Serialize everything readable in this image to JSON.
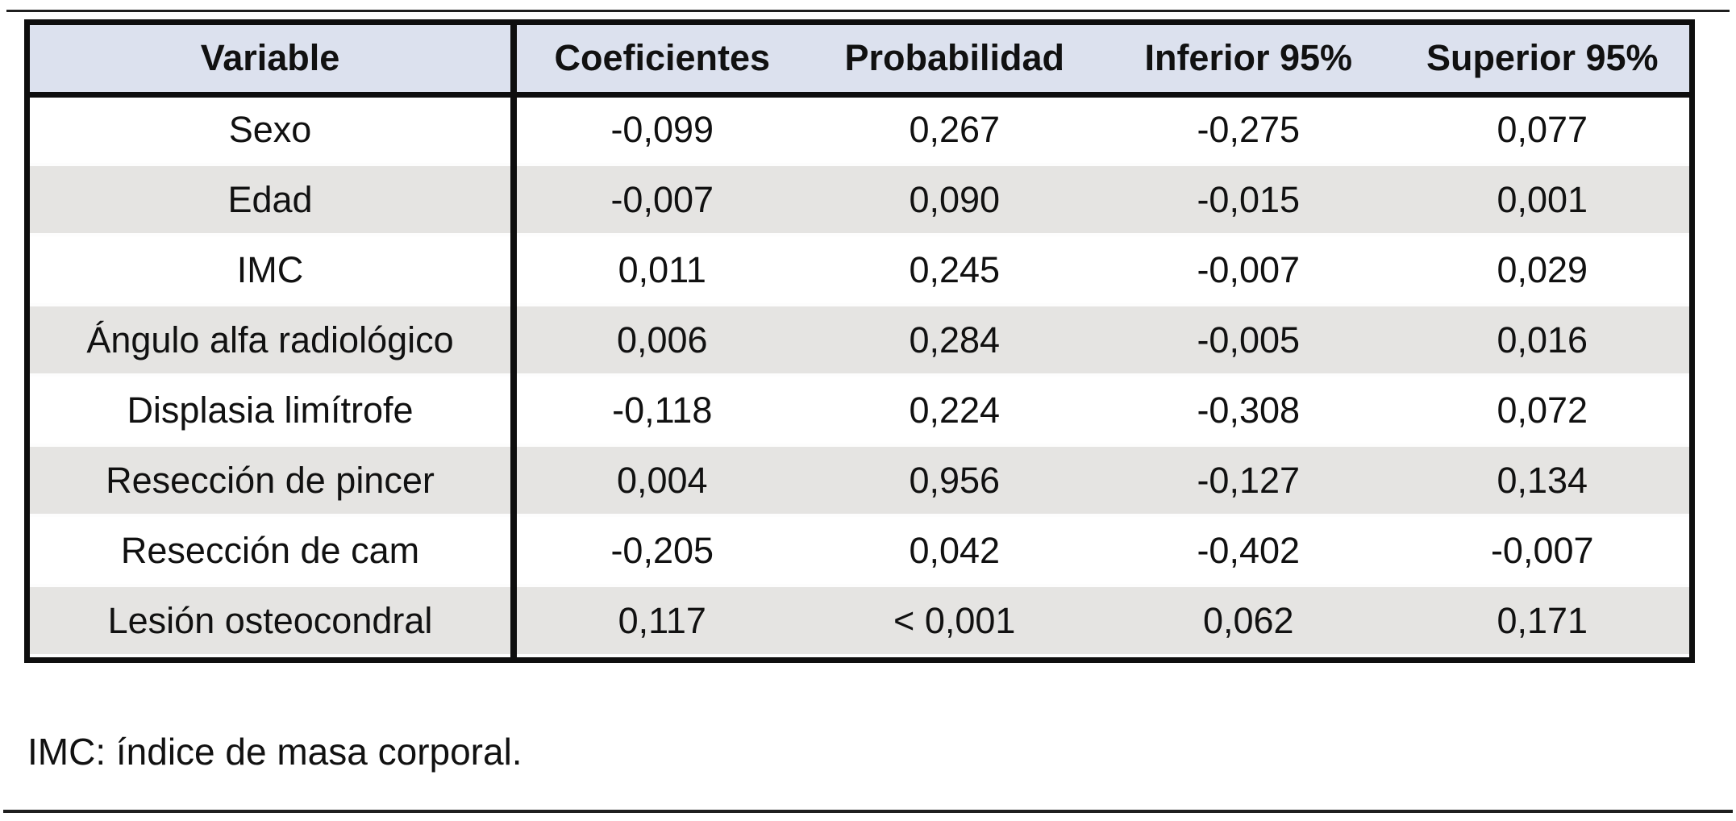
{
  "table": {
    "columns": [
      "Variable",
      "Coeficientes",
      "Probabilidad",
      "Inferior 95%",
      "Superior 95%"
    ],
    "rows": [
      [
        "Sexo",
        "-0,099",
        "0,267",
        "-0,275",
        "0,077"
      ],
      [
        "Edad",
        "-0,007",
        "0,090",
        "-0,015",
        "0,001"
      ],
      [
        "IMC",
        "0,011",
        "0,245",
        "-0,007",
        "0,029"
      ],
      [
        "Ángulo alfa radiológico",
        "0,006",
        "0,284",
        "-0,005",
        "0,016"
      ],
      [
        "Displasia limítrofe",
        "-0,118",
        "0,224",
        "-0,308",
        "0,072"
      ],
      [
        "Resección de pincer",
        "0,004",
        "0,956",
        "-0,127",
        "0,134"
      ],
      [
        "Resección de cam",
        "-0,205",
        "0,042",
        "-0,402",
        "-0,007"
      ],
      [
        "Lesión osteocondral",
        "0,117",
        "< 0,001",
        "0,062",
        "0,171"
      ]
    ],
    "footnote": "IMC: índice de masa corporal."
  },
  "colors": {
    "header_bg": "#dce1ee",
    "alt_row_bg": "#e5e4e2",
    "border": "#0e0e0e",
    "text": "#111111",
    "rule": "#1f1f1f"
  }
}
